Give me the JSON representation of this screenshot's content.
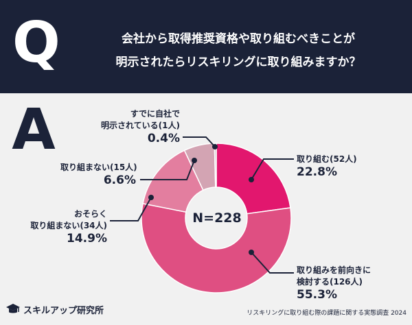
{
  "header": {
    "q_letter": "Q",
    "question_line1": "会社から取得推奨資格や取り組むべきことが",
    "question_line2": "明示されたらリスキリングに取り組みますか？"
  },
  "answer_letter": "A",
  "chart_data": {
    "type": "pie",
    "center_label": "N=228",
    "slices": [
      {
        "label": "取り組む(52人)",
        "percent_text": "22.8%",
        "value": 22.8,
        "count": 52,
        "color": "#e2176e"
      },
      {
        "label": "取り組みを前向きに 検討する(126人)",
        "label_lines": [
          "取り組みを前向きに",
          "検討する(126人)"
        ],
        "percent_text": "55.3%",
        "value": 55.3,
        "count": 126,
        "color": "#df4f82"
      },
      {
        "label": "おそらく 取り組まない(34人)",
        "label_lines": [
          "おそらく",
          "取り組まない(34人)"
        ],
        "percent_text": "14.9%",
        "value": 14.9,
        "count": 34,
        "color": "#e37e9f"
      },
      {
        "label": "取り組まない(15人)",
        "percent_text": "6.6%",
        "value": 6.6,
        "count": 15,
        "color": "#d3a4b3"
      },
      {
        "label": "すでに自社で 明示されている(1人)",
        "label_lines": [
          "すでに自社で",
          "明示されている(1人)"
        ],
        "percent_text": "0.4%",
        "value": 0.4,
        "count": 1,
        "color": "#c9bfc3"
      }
    ]
  },
  "footer": {
    "brand": "スキルアップ研究所",
    "source": "リスキリングに取り組む際の課題に関する実態調査 2024"
  }
}
